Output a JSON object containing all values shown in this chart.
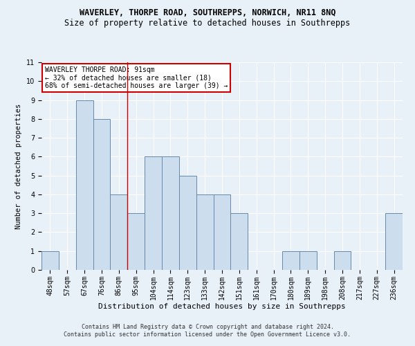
{
  "title": "WAVERLEY, THORPE ROAD, SOUTHREPPS, NORWICH, NR11 8NQ",
  "subtitle": "Size of property relative to detached houses in Southrepps",
  "xlabel": "Distribution of detached houses by size in Southrepps",
  "ylabel": "Number of detached properties",
  "categories": [
    "48sqm",
    "57sqm",
    "67sqm",
    "76sqm",
    "86sqm",
    "95sqm",
    "104sqm",
    "114sqm",
    "123sqm",
    "133sqm",
    "142sqm",
    "151sqm",
    "161sqm",
    "170sqm",
    "180sqm",
    "189sqm",
    "198sqm",
    "208sqm",
    "217sqm",
    "227sqm",
    "236sqm"
  ],
  "values": [
    1,
    0,
    9,
    8,
    4,
    3,
    6,
    6,
    5,
    4,
    4,
    3,
    0,
    0,
    1,
    1,
    0,
    1,
    0,
    0,
    3
  ],
  "bar_color": "#ccdded",
  "bar_edge_color": "#6688aa",
  "background_color": "#e8f0f8",
  "property_line_index": 4.5,
  "annotation_text": "WAVERLEY THORPE ROAD: 91sqm\n← 32% of detached houses are smaller (18)\n68% of semi-detached houses are larger (39) →",
  "annotation_box_color": "#ffffff",
  "annotation_box_edge": "#cc0000",
  "property_line_color": "#cc0000",
  "ylim": [
    0,
    11
  ],
  "yticks": [
    0,
    1,
    2,
    3,
    4,
    5,
    6,
    7,
    8,
    9,
    10,
    11
  ],
  "footer1": "Contains HM Land Registry data © Crown copyright and database right 2024.",
  "footer2": "Contains public sector information licensed under the Open Government Licence v3.0.",
  "title_fontsize": 8.5,
  "subtitle_fontsize": 8.5,
  "xlabel_fontsize": 8,
  "ylabel_fontsize": 7.5,
  "tick_fontsize": 7,
  "annot_fontsize": 7,
  "footer_fontsize": 6
}
